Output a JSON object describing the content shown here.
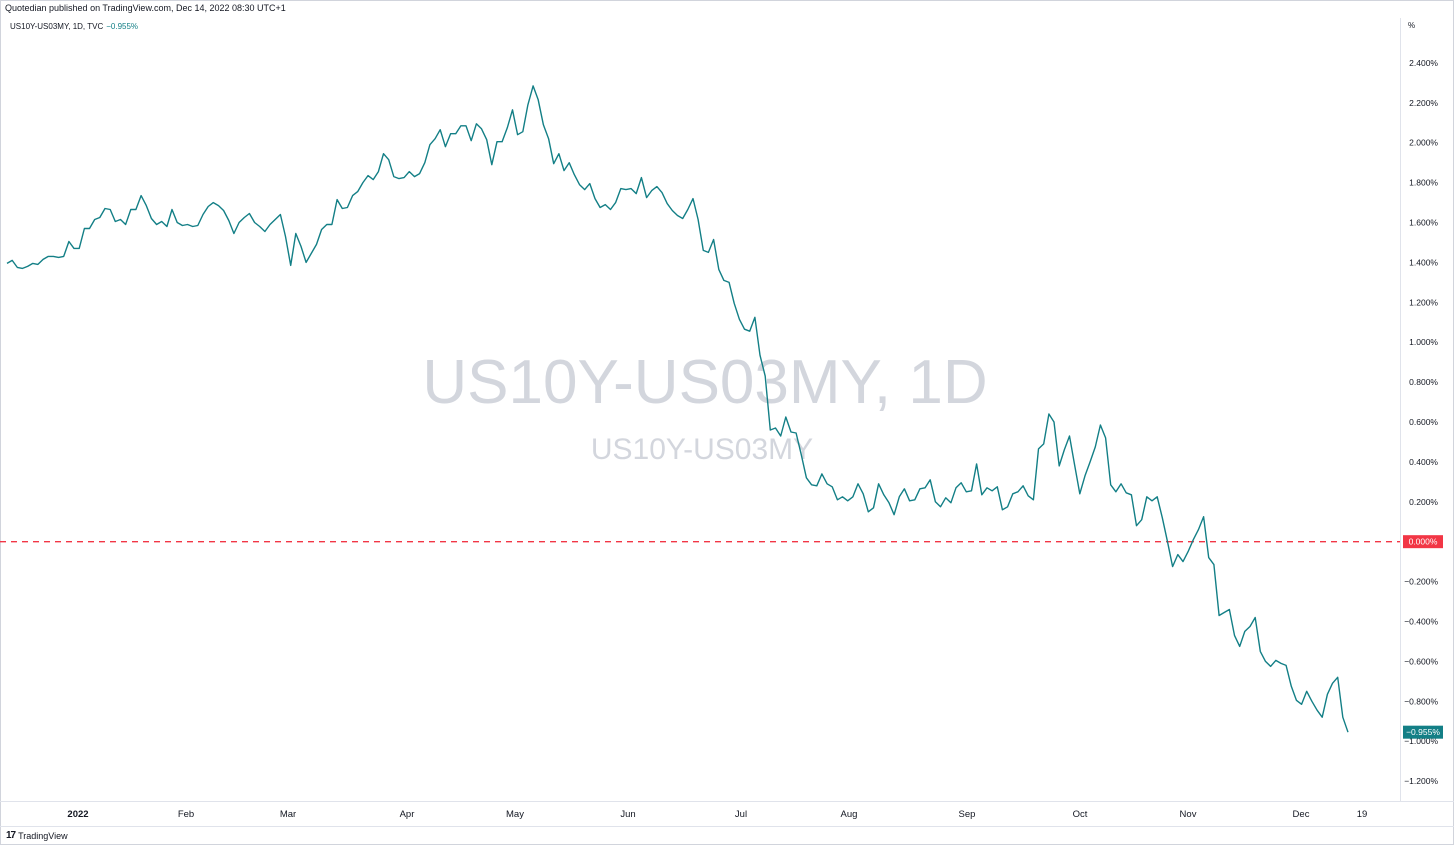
{
  "header": {
    "published": "Quotedian published on TradingView.com, Dec 14, 2022 08:30 UTC+1",
    "symbol_line": "US10Y-US03MY, 1D, TVC",
    "last_value": "−0.955%"
  },
  "watermark": {
    "main": "US10Y-US03MY, 1D",
    "sub": "US10Y-US03MY"
  },
  "axis_unit": "%",
  "footer": {
    "logo_text": "TradingView",
    "logo_mark": "17"
  },
  "colors": {
    "line": "#137f86",
    "zero_line": "#f23645",
    "last_badge": "#137f86",
    "zero_badge": "#f23645"
  },
  "chart_data": {
    "type": "line",
    "title": "",
    "series": [
      {
        "values": [
          1.395,
          1.41,
          1.375,
          1.37,
          1.38,
          1.395,
          1.39,
          1.415,
          1.43,
          1.43,
          1.425,
          1.43,
          1.505,
          1.47,
          1.47,
          1.57,
          1.57,
          1.615,
          1.625,
          1.67,
          1.665,
          1.605,
          1.615,
          1.59,
          1.665,
          1.665,
          1.735,
          1.685,
          1.62,
          1.59,
          1.605,
          1.58,
          1.665,
          1.6,
          1.585,
          1.59,
          1.58,
          1.585,
          1.64,
          1.68,
          1.7,
          1.685,
          1.66,
          1.61,
          1.545,
          1.6,
          1.625,
          1.645,
          1.6,
          1.58,
          1.555,
          1.59,
          1.615,
          1.64,
          1.53,
          1.385,
          1.545,
          1.48,
          1.4,
          1.445,
          1.49,
          1.565,
          1.59,
          1.59,
          1.715,
          1.67,
          1.675,
          1.735,
          1.755,
          1.8,
          1.835,
          1.815,
          1.855,
          1.945,
          1.915,
          1.83,
          1.82,
          1.825,
          1.855,
          1.83,
          1.845,
          1.9,
          1.99,
          2.02,
          2.065,
          1.98,
          2.045,
          2.045,
          2.085,
          2.085,
          2.01,
          2.095,
          2.07,
          2.015,
          1.89,
          2.005,
          2.005,
          2.075,
          2.165,
          2.04,
          2.055,
          2.19,
          2.285,
          2.215,
          2.09,
          2.02,
          1.895,
          1.945,
          1.86,
          1.9,
          1.84,
          1.79,
          1.765,
          1.795,
          1.72,
          1.675,
          1.69,
          1.665,
          1.7,
          1.77,
          1.765,
          1.77,
          1.745,
          1.825,
          1.725,
          1.76,
          1.78,
          1.75,
          1.695,
          1.66,
          1.635,
          1.62,
          1.665,
          1.72,
          1.615,
          1.46,
          1.45,
          1.515,
          1.365,
          1.31,
          1.3,
          1.195,
          1.115,
          1.065,
          1.055,
          1.125,
          0.935,
          0.83,
          0.56,
          0.57,
          0.53,
          0.625,
          0.55,
          0.545,
          0.435,
          0.32,
          0.285,
          0.28,
          0.34,
          0.29,
          0.275,
          0.21,
          0.225,
          0.205,
          0.225,
          0.29,
          0.24,
          0.15,
          0.17,
          0.29,
          0.235,
          0.195,
          0.135,
          0.225,
          0.265,
          0.205,
          0.21,
          0.265,
          0.27,
          0.31,
          0.2,
          0.175,
          0.22,
          0.195,
          0.27,
          0.295,
          0.25,
          0.255,
          0.39,
          0.235,
          0.27,
          0.255,
          0.275,
          0.16,
          0.175,
          0.24,
          0.25,
          0.28,
          0.23,
          0.21,
          0.465,
          0.49,
          0.64,
          0.6,
          0.38,
          0.46,
          0.53,
          0.385,
          0.24,
          0.33,
          0.4,
          0.475,
          0.585,
          0.52,
          0.285,
          0.25,
          0.29,
          0.245,
          0.235,
          0.08,
          0.11,
          0.225,
          0.205,
          0.225,
          0.12,
          0.0,
          -0.125,
          -0.065,
          -0.1,
          -0.05,
          0.01,
          0.06,
          0.125,
          -0.08,
          -0.115,
          -0.37,
          -0.355,
          -0.34,
          -0.47,
          -0.525,
          -0.45,
          -0.425,
          -0.38,
          -0.55,
          -0.6,
          -0.625,
          -0.595,
          -0.61,
          -0.62,
          -0.725,
          -0.795,
          -0.815,
          -0.75,
          -0.8,
          -0.845,
          -0.88,
          -0.765,
          -0.71,
          -0.68,
          -0.88,
          -0.955
        ]
      }
    ],
    "x_tick_labels": [
      "2022",
      "Feb",
      "Mar",
      "Apr",
      "May",
      "Jun",
      "Jul",
      "Aug",
      "Sep",
      "Oct",
      "Nov",
      "Dec",
      "19"
    ],
    "y_tick_labels": [
      "2.400%",
      "2.200%",
      "2.000%",
      "1.800%",
      "1.600%",
      "1.400%",
      "1.200%",
      "1.000%",
      "0.800%",
      "0.600%",
      "0.400%",
      "0.200%",
      "0.000%",
      "−0.200%",
      "−0.400%",
      "−0.600%",
      "−0.800%",
      "−1.000%",
      "−1.200%"
    ],
    "y_ticks": [
      2.4,
      2.2,
      2.0,
      1.8,
      1.6,
      1.4,
      1.2,
      1.0,
      0.8,
      0.6,
      0.4,
      0.2,
      0.0,
      -0.2,
      -0.4,
      -0.6,
      -0.8,
      -1.0,
      -1.2
    ],
    "ylim": [
      -1.3,
      2.55
    ],
    "reference_line": {
      "value": 0.0,
      "label": "0.000%"
    },
    "last_label": "−0.955%",
    "grid": false
  }
}
